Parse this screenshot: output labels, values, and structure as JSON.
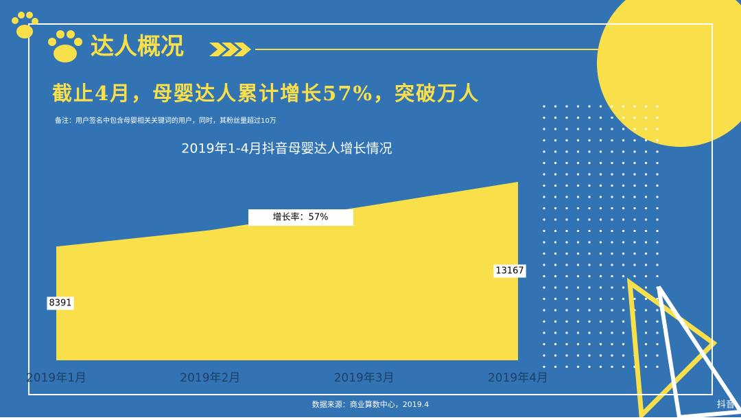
{
  "section_title": "达人概况",
  "headline": "截止4月，母婴达人累计增长57%，突破万人",
  "note": "备注：用户签名中包含母婴相关关键词的用户，同时，其粉丝量超过10万",
  "source": "数据来源：商业算数中心，2019.4",
  "logo": "抖音",
  "chart_data": {
    "type": "area",
    "title": "2019年1-4月抖音母婴达人增长情况",
    "categories": [
      "2019年1月",
      "2019年2月",
      "2019年3月",
      "2019年4月"
    ],
    "values": [
      8391,
      9600,
      11350,
      13167
    ],
    "color": "#f9e04b",
    "annotation": "增长率：57%"
  }
}
